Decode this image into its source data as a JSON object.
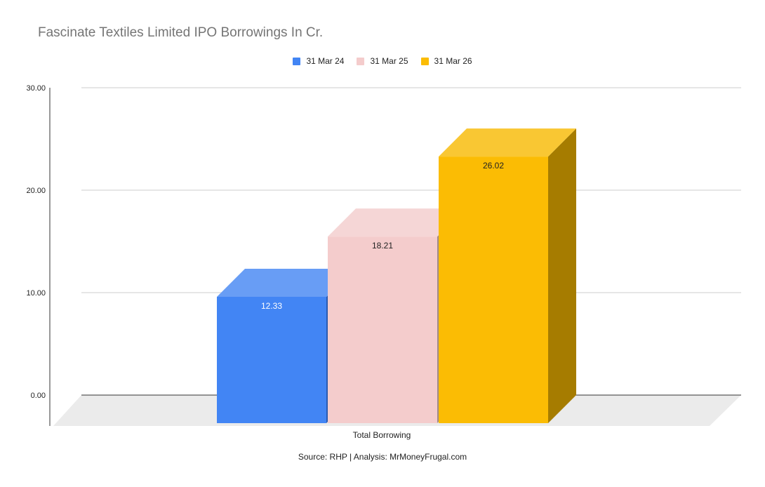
{
  "chart_data": {
    "type": "bar",
    "title": "Fascinate Textiles Limited IPO Borrowings In Cr.",
    "categories": [
      "Total Borrowing"
    ],
    "series": [
      {
        "name": "31 Mar 24",
        "values": [
          12.33
        ],
        "color": "#4285f4",
        "top_color": "#689df5",
        "side_color": "#2a5bb0",
        "label_color": "#ffffff"
      },
      {
        "name": "31 Mar 25",
        "values": [
          18.21
        ],
        "color": "#f4cccc",
        "top_color": "#f5d6d6",
        "side_color": "#a08a8a",
        "label_color": "#222222"
      },
      {
        "name": "31 Mar 26",
        "values": [
          26.02
        ],
        "color": "#fbbc04",
        "top_color": "#f9c733",
        "side_color": "#a67c00",
        "label_color": "#222222"
      }
    ],
    "y_ticks": [
      "0.00",
      "10.00",
      "20.00",
      "30.00"
    ],
    "ylim": [
      0,
      30
    ],
    "grid": true,
    "legend_position": "top",
    "xlabel": "",
    "ylabel": "",
    "source": "Source: RHP | Analysis: MrMoneyFrugal.com"
  }
}
